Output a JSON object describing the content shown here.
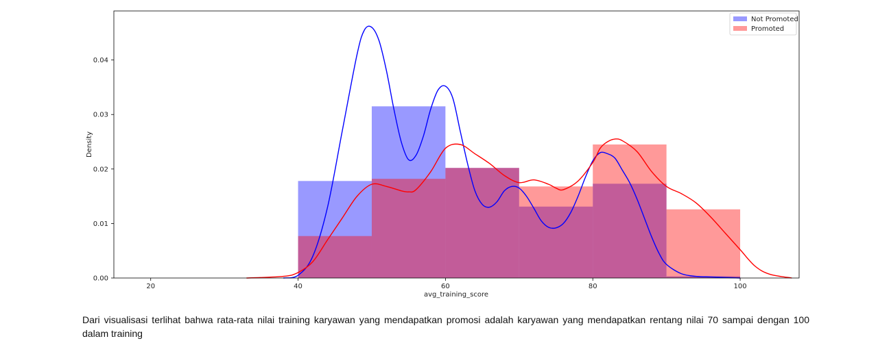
{
  "chart_data": {
    "type": "bar",
    "title": "",
    "xlabel": "avg_training_score",
    "ylabel": "Density",
    "xlim": [
      15,
      108
    ],
    "ylim": [
      0,
      0.049
    ],
    "xticks": [
      20,
      40,
      60,
      80,
      100
    ],
    "xtick_labels": [
      "20",
      "40",
      "60",
      "80",
      "100"
    ],
    "yticks": [
      0.0,
      0.01,
      0.02,
      0.03,
      0.04
    ],
    "ytick_labels": [
      "0.00",
      "0.01",
      "0.02",
      "0.03",
      "0.04"
    ],
    "grid": false,
    "legend_position": "top-right",
    "bin_edges": [
      40,
      50,
      60,
      70,
      80,
      90,
      100
    ],
    "series": [
      {
        "name": "Not Promoted",
        "color": "#0000ff",
        "hist_values": [
          0.0178,
          0.0315,
          0.0202,
          0.0131,
          0.0173,
          0.0003
        ],
        "kde": {
          "x": [
            38,
            40,
            42,
            44,
            46,
            48,
            49,
            50,
            51,
            52,
            53,
            54,
            55,
            56,
            57,
            58,
            59,
            60,
            61,
            62,
            63,
            64,
            65,
            66,
            67,
            68,
            69,
            70,
            71,
            72,
            73,
            74,
            75,
            76,
            77,
            78,
            79,
            80,
            81,
            82,
            83,
            84,
            85,
            86,
            87,
            88,
            89,
            90,
            92,
            94,
            96,
            98,
            100
          ],
          "y": [
            0.0,
            0.0005,
            0.004,
            0.013,
            0.027,
            0.041,
            0.0455,
            0.046,
            0.0435,
            0.038,
            0.031,
            0.025,
            0.0217,
            0.0225,
            0.026,
            0.031,
            0.0345,
            0.0352,
            0.033,
            0.027,
            0.021,
            0.016,
            0.0135,
            0.013,
            0.014,
            0.016,
            0.0168,
            0.0165,
            0.015,
            0.0128,
            0.0105,
            0.0093,
            0.0092,
            0.01,
            0.012,
            0.015,
            0.0185,
            0.0215,
            0.023,
            0.0228,
            0.022,
            0.0198,
            0.0175,
            0.0145,
            0.011,
            0.0075,
            0.0045,
            0.0025,
            0.0008,
            0.0003,
            0.0002,
            0.0001,
            0.0
          ]
        }
      },
      {
        "name": "Promoted",
        "color": "#ff0000",
        "hist_values": [
          0.0077,
          0.0182,
          0.0202,
          0.0168,
          0.0245,
          0.0126
        ],
        "kde": {
          "x": [
            33,
            38,
            40,
            42,
            44,
            46,
            48,
            50,
            52,
            54,
            55,
            56,
            58,
            60,
            62,
            64,
            66,
            68,
            70,
            72,
            74,
            75,
            76,
            78,
            80,
            81,
            82,
            83,
            84,
            86,
            88,
            90,
            92,
            94,
            96,
            98,
            100,
            102,
            104,
            107
          ],
          "y": [
            0.0,
            0.0003,
            0.001,
            0.003,
            0.007,
            0.011,
            0.015,
            0.0172,
            0.0168,
            0.016,
            0.0158,
            0.0162,
            0.0195,
            0.0238,
            0.0245,
            0.0228,
            0.021,
            0.0188,
            0.0175,
            0.018,
            0.0172,
            0.0165,
            0.0162,
            0.0178,
            0.0212,
            0.0238,
            0.025,
            0.0255,
            0.0252,
            0.0232,
            0.0195,
            0.0168,
            0.0155,
            0.0138,
            0.0112,
            0.0082,
            0.0052,
            0.0022,
            0.0007,
            0.0
          ]
        }
      }
    ]
  },
  "caption": "Dari visualisasi terlihat bahwa rata-rata nilai training karyawan yang mendapatkan promosi adalah karyawan yang mendapatkan rentang nilai 70 sampai dengan 100 dalam training"
}
